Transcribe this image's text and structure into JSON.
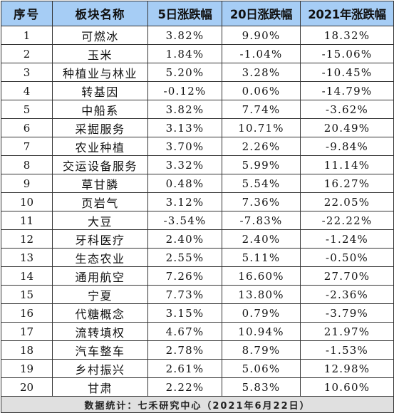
{
  "table": {
    "headers": {
      "index": "序号",
      "name": "板块名称",
      "change_5d": "5日涨跌幅",
      "change_20d": "20日涨跌幅",
      "change_ytd": "2021年涨跌幅"
    },
    "rows": [
      {
        "index": "1",
        "name": "可燃冰",
        "change_5d": "3.82%",
        "change_20d": "9.90%",
        "change_ytd": "18.32%"
      },
      {
        "index": "2",
        "name": "玉米",
        "change_5d": "1.84%",
        "change_20d": "-1.04%",
        "change_ytd": "-15.06%"
      },
      {
        "index": "3",
        "name": "种植业与林业",
        "change_5d": "5.20%",
        "change_20d": "3.28%",
        "change_ytd": "-10.45%"
      },
      {
        "index": "4",
        "name": "转基因",
        "change_5d": "-0.12%",
        "change_20d": "0.06%",
        "change_ytd": "-14.79%"
      },
      {
        "index": "5",
        "name": "中船系",
        "change_5d": "3.82%",
        "change_20d": "7.74%",
        "change_ytd": "-3.62%"
      },
      {
        "index": "6",
        "name": "采掘服务",
        "change_5d": "3.13%",
        "change_20d": "10.71%",
        "change_ytd": "20.49%"
      },
      {
        "index": "7",
        "name": "农业种植",
        "change_5d": "3.70%",
        "change_20d": "2.26%",
        "change_ytd": "-9.84%"
      },
      {
        "index": "8",
        "name": "交运设备服务",
        "change_5d": "3.32%",
        "change_20d": "5.99%",
        "change_ytd": "11.14%"
      },
      {
        "index": "9",
        "name": "草甘膦",
        "change_5d": "0.48%",
        "change_20d": "5.54%",
        "change_ytd": "16.27%"
      },
      {
        "index": "10",
        "name": "页岩气",
        "change_5d": "3.12%",
        "change_20d": "7.36%",
        "change_ytd": "22.05%"
      },
      {
        "index": "11",
        "name": "大豆",
        "change_5d": "-3.54%",
        "change_20d": "-7.83%",
        "change_ytd": "-22.22%"
      },
      {
        "index": "12",
        "name": "牙科医疗",
        "change_5d": "2.40%",
        "change_20d": "2.40%",
        "change_ytd": "-1.24%"
      },
      {
        "index": "13",
        "name": "生态农业",
        "change_5d": "2.55%",
        "change_20d": "5.11%",
        "change_ytd": "-0.50%"
      },
      {
        "index": "14",
        "name": "通用航空",
        "change_5d": "7.26%",
        "change_20d": "16.60%",
        "change_ytd": "27.70%"
      },
      {
        "index": "15",
        "name": "宁夏",
        "change_5d": "7.73%",
        "change_20d": "13.80%",
        "change_ytd": "-2.36%"
      },
      {
        "index": "16",
        "name": "代糖概念",
        "change_5d": "3.15%",
        "change_20d": "0.79%",
        "change_ytd": "-3.79%"
      },
      {
        "index": "17",
        "name": "流转填权",
        "change_5d": "4.67%",
        "change_20d": "10.94%",
        "change_ytd": "21.97%"
      },
      {
        "index": "18",
        "name": "汽车整车",
        "change_5d": "2.78%",
        "change_20d": "8.79%",
        "change_ytd": "-1.53%"
      },
      {
        "index": "19",
        "name": "乡村振兴",
        "change_5d": "2.61%",
        "change_20d": "5.06%",
        "change_ytd": "12.98%"
      },
      {
        "index": "20",
        "name": "甘肃",
        "change_5d": "2.22%",
        "change_20d": "5.83%",
        "change_ytd": "10.60%"
      }
    ],
    "footer": "数据统计：七禾研究中心（2021年6月22日）"
  },
  "colors": {
    "header_bg": "#a6cdf5",
    "footer_bg": "#e0e0e0",
    "grid": "#333333"
  }
}
